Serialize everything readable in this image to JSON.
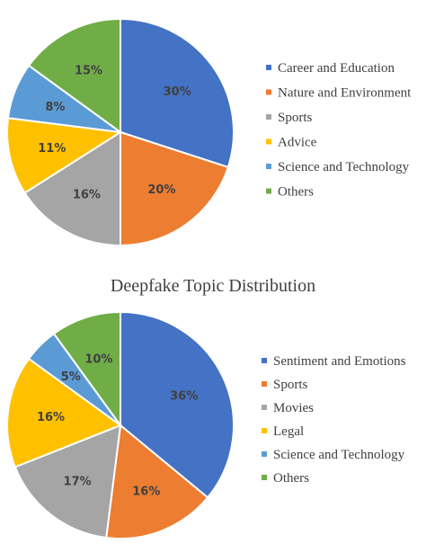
{
  "chart_data": [
    {
      "type": "pie",
      "title": "",
      "legend_position": "right",
      "categories": [
        "Career and Education",
        "Nature and Environment",
        "Sports",
        "Advice",
        "Science and Technology",
        "Others"
      ],
      "values": [
        30,
        20,
        16,
        11,
        8,
        15
      ],
      "value_labels": [
        "30%",
        "20%",
        "16%",
        "11%",
        "8%",
        "15%"
      ],
      "colors": [
        "#4472C4",
        "#ED7D31",
        "#A5A5A5",
        "#FFC000",
        "#5B9BD5",
        "#70AD47"
      ]
    },
    {
      "type": "pie",
      "title": "Deepfake Topic Distribution",
      "legend_position": "right",
      "categories": [
        "Sentiment and Emotions",
        "Sports",
        "Movies",
        "Legal",
        "Science and Technology",
        "Others"
      ],
      "values": [
        36,
        16,
        17,
        16,
        5,
        10
      ],
      "value_labels": [
        "36%",
        "16%",
        "17%",
        "16%",
        "5%",
        "10%"
      ],
      "colors": [
        "#4472C4",
        "#ED7D31",
        "#A5A5A5",
        "#FFC000",
        "#5B9BD5",
        "#70AD47"
      ]
    }
  ]
}
